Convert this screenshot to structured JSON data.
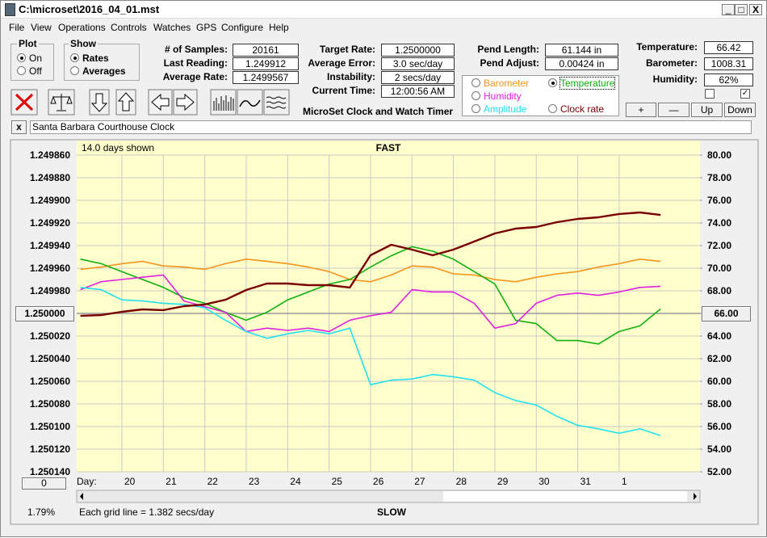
{
  "window": {
    "title": "C:\\microset\\2016_04_01.mst"
  },
  "menu": [
    "File",
    "View",
    "Operations",
    "Controls",
    "Watches",
    "GPS",
    "Configure",
    "Help"
  ],
  "plot_group": {
    "title": "Plot",
    "options": [
      "On",
      "Off"
    ],
    "selected": 0
  },
  "show_group": {
    "title": "Show",
    "options": [
      "Rates",
      "Averages"
    ],
    "selected": 0
  },
  "stats": [
    {
      "label": "# of Samples:",
      "value": "20161"
    },
    {
      "label": "Last Reading:",
      "value": "1.249912"
    },
    {
      "label": "Average Rate:",
      "value": "1.2499567"
    }
  ],
  "timing": [
    {
      "label": "Target Rate:",
      "value": "1.2500000"
    },
    {
      "label": "Average Error:",
      "value": "3.0 sec/day"
    },
    {
      "label": "Instability:",
      "value": "2 secs/day"
    },
    {
      "label": "Current Time:",
      "value": "12:00:56 AM"
    }
  ],
  "pendulum": [
    {
      "label": "Pend Length:",
      "value": "61.144 in"
    },
    {
      "label": "Pend Adjust:",
      "value": "0.00424 in"
    }
  ],
  "environment": [
    {
      "label": "Temperature:",
      "value": "66.42"
    },
    {
      "label": "Barometer:",
      "value": "1008.31"
    },
    {
      "label": "Humidity:",
      "value": "62%"
    }
  ],
  "checkboxes": [
    false,
    true
  ],
  "adjust_buttons": [
    "+",
    "—",
    "Up",
    "Down"
  ],
  "app_title": "MicroSet Clock and Watch Timer",
  "legend_selected": 1,
  "clock_name": "Santa Barbara Courthouse Clock",
  "chart_data": {
    "type": "line",
    "days_shown": "14.0 days shown",
    "top_label": "FAST",
    "bottom_label": "SLOW",
    "x_label": "Day:",
    "grid_note": "Each grid line = 1.382 secs/day",
    "percent": "1.79%",
    "offset_button": "0",
    "left_marker": "1.250000",
    "right_marker": "66.00",
    "grid": true,
    "xlim": [
      18.91,
      33.95
    ],
    "xticks": [
      20,
      21,
      22,
      23,
      24,
      25,
      26,
      27,
      28,
      29,
      30,
      31,
      {
        "value": 32,
        "label": "1"
      }
    ],
    "ylim": [
      1.25014,
      1.24986
    ],
    "yticks": [
      {
        "value": 1.24986,
        "label": "1.249860"
      },
      {
        "value": 1.24988,
        "label": "1.249880"
      },
      {
        "value": 1.2499,
        "label": "1.249900"
      },
      {
        "value": 1.24992,
        "label": "1.249920"
      },
      {
        "value": 1.24994,
        "label": "1.249940"
      },
      {
        "value": 1.24996,
        "label": "1.249960"
      },
      {
        "value": 1.24998,
        "label": "1.249980"
      },
      {
        "value": 1.25,
        "label": "1.250000"
      },
      {
        "value": 1.25002,
        "label": "1.250020"
      },
      {
        "value": 1.25004,
        "label": "1.250040"
      },
      {
        "value": 1.25006,
        "label": "1.250060"
      },
      {
        "value": 1.25008,
        "label": "1.250080"
      },
      {
        "value": 1.2501,
        "label": "1.250100"
      },
      {
        "value": 1.25012,
        "label": "1.250120"
      },
      {
        "value": 1.25014,
        "label": "1.250140"
      }
    ],
    "y2lim": [
      52,
      80
    ],
    "y2ticks": [
      {
        "value": 80,
        "label": "80.00"
      },
      {
        "value": 78,
        "label": "78.00"
      },
      {
        "value": 76,
        "label": "76.00"
      },
      {
        "value": 74,
        "label": "74.00"
      },
      {
        "value": 72,
        "label": "72.00"
      },
      {
        "value": 70,
        "label": "70.00"
      },
      {
        "value": 68,
        "label": "68.00"
      },
      {
        "value": 66,
        "label": "66.00"
      },
      {
        "value": 64,
        "label": "64.00"
      },
      {
        "value": 62,
        "label": "62.00"
      },
      {
        "value": 60,
        "label": "60.00"
      },
      {
        "value": 58,
        "label": "58.00"
      },
      {
        "value": 56,
        "label": "56.00"
      },
      {
        "value": 54,
        "label": "54.00"
      },
      {
        "value": 52,
        "label": "52.00"
      }
    ],
    "x": [
      19,
      19.5,
      20,
      20.5,
      21,
      21.5,
      22,
      22.5,
      23,
      23.5,
      24,
      24.5,
      25,
      25.5,
      26,
      26.5,
      27,
      27.5,
      28,
      28.5,
      29,
      29.5,
      30,
      30.5,
      31,
      31.5,
      32,
      32.5,
      33
    ],
    "series": [
      {
        "name": "Barometer",
        "color": "#f7941d",
        "axis": "y2",
        "values": [
          69.9,
          70.1,
          70.4,
          70.6,
          70.2,
          70.1,
          69.9,
          70.4,
          70.8,
          70.6,
          70.4,
          70.1,
          69.7,
          69.0,
          68.8,
          69.4,
          70.2,
          70.1,
          69.5,
          69.4,
          69.0,
          68.8,
          69.2,
          69.5,
          69.7,
          70.1,
          70.4,
          70.8,
          70.6
        ]
      },
      {
        "name": "Temperature",
        "color": "#10b010",
        "axis": "y2",
        "values": [
          70.8,
          70.4,
          69.7,
          69.0,
          68.3,
          67.4,
          66.9,
          66.1,
          65.4,
          66.1,
          67.2,
          67.9,
          68.6,
          69.0,
          70.1,
          71.1,
          71.9,
          71.5,
          70.8,
          69.7,
          68.6,
          65.4,
          65.1,
          63.6,
          63.6,
          63.3,
          64.4,
          64.9,
          66.4
        ]
      },
      {
        "name": "Humidity",
        "color": "#e020e0",
        "axis": "y2",
        "values": [
          68.1,
          68.8,
          69.0,
          69.2,
          69.4,
          67.1,
          66.6,
          66.1,
          64.4,
          64.7,
          64.5,
          64.7,
          64.4,
          65.4,
          65.8,
          66.1,
          68.1,
          67.9,
          67.9,
          66.9,
          64.7,
          65.1,
          66.9,
          67.6,
          67.8,
          67.6,
          67.9,
          68.3,
          68.4
        ]
      },
      {
        "name": "Amplitude",
        "color": "#22e0f0",
        "axis": "y2",
        "values": [
          68.3,
          68.1,
          67.2,
          67.1,
          66.9,
          66.8,
          66.5,
          65.4,
          64.4,
          63.8,
          64.2,
          64.5,
          64.2,
          64.7,
          59.7,
          60.1,
          60.2,
          60.6,
          60.4,
          60.1,
          59.0,
          58.3,
          57.9,
          56.9,
          56.1,
          55.8,
          55.4,
          55.8,
          55.2
        ]
      },
      {
        "name": "Clock rate",
        "color": "#7a0000",
        "axis": "y",
        "values": [
          1.2500021,
          1.2500014,
          1.2499986,
          1.2499964,
          1.2499971,
          1.2499936,
          1.2499921,
          1.2499879,
          1.2499793,
          1.2499736,
          1.2499736,
          1.249975,
          1.249975,
          1.2499771,
          1.2499486,
          1.2499393,
          1.2499436,
          1.2499486,
          1.2499436,
          1.2499364,
          1.2499293,
          1.249925,
          1.2499236,
          1.2499193,
          1.2499164,
          1.249915,
          1.2499121,
          1.2499107,
          1.2499129
        ]
      }
    ]
  }
}
